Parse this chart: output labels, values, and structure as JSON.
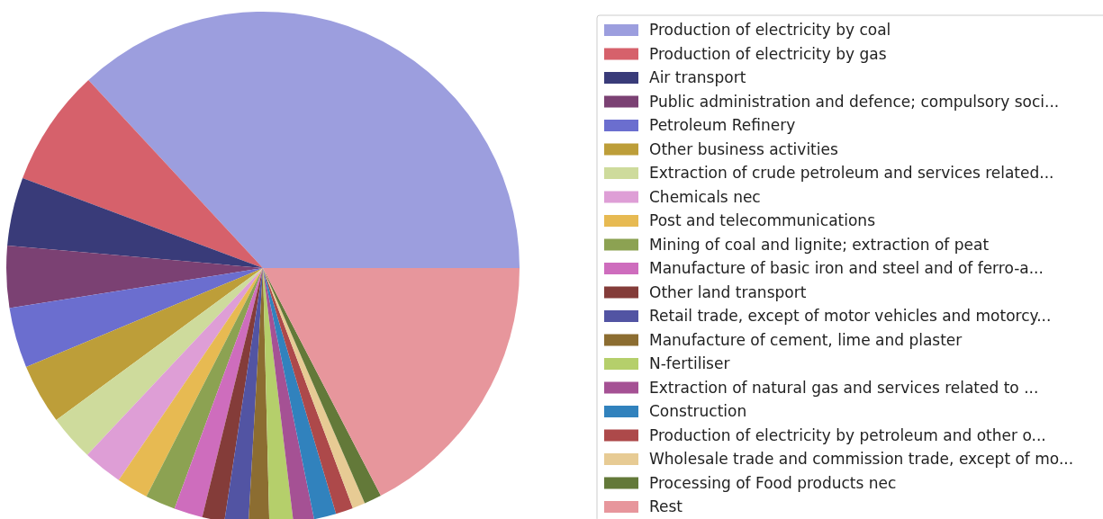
{
  "chart_data": {
    "type": "pie",
    "categories": [
      "Production of electricity by coal",
      "Production of electricity by gas",
      "Air transport",
      "Public administration and defence; compulsory soci...",
      "Petroleum Refinery",
      "Other business activities",
      "Extraction of crude petroleum and services related...",
      "Chemicals nec",
      "Post and telecommunications",
      "Mining of coal and lignite; extraction of peat",
      "Manufacture of basic iron and steel and of ferro-a...",
      "Other land transport",
      "Retail trade, except of motor vehicles and motorcy...",
      "Manufacture of cement, lime and plaster",
      "N-fertiliser",
      "Extraction of natural gas and services related to ...",
      "Construction",
      "Production of electricity by petroleum and other o...",
      "Wholesale trade and commission trade, except of mo...",
      "Processing of Food products nec",
      "Rest"
    ],
    "values": [
      36.9,
      7.4,
      4.3,
      3.9,
      3.8,
      3.8,
      2.9,
      2.5,
      2.0,
      1.9,
      1.8,
      1.4,
      1.5,
      1.3,
      1.5,
      1.3,
      1.4,
      1.1,
      0.8,
      1.1,
      17.4
    ],
    "colors": [
      "#9c9ede",
      "#d6616b",
      "#393b79",
      "#7b4173",
      "#6b6ecf",
      "#bd9e39",
      "#cedb9c",
      "#de9ed6",
      "#e7ba52",
      "#8ca252",
      "#ce6dbd",
      "#843c39",
      "#5254a3",
      "#8c6d31",
      "#b5cf6b",
      "#a55194",
      "#3182bd",
      "#ad494a",
      "#e7cb94",
      "#637939",
      "#e7969c"
    ],
    "legend": "right"
  }
}
